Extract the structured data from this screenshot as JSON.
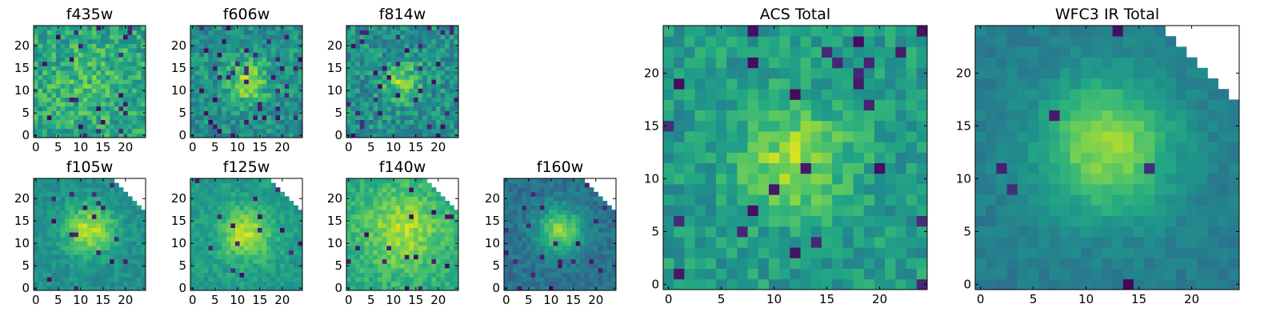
{
  "figure": {
    "background": "#ffffff",
    "colormap": "viridis"
  },
  "chart_data": [
    {
      "type": "heatmap",
      "title": "f435w",
      "grid": [
        25,
        25
      ],
      "xlim": [
        -0.5,
        24.5
      ],
      "ylim": [
        -0.5,
        24.5
      ],
      "xticks": [
        0,
        5,
        10,
        15,
        20
      ],
      "yticks": [
        0,
        5,
        10,
        15,
        20
      ],
      "xtick_labels": [
        "0",
        "5",
        "10",
        "15",
        "20"
      ],
      "ytick_labels": [
        "0",
        "5",
        "10",
        "15",
        "20"
      ],
      "center": [
        12,
        12
      ],
      "sigma": 6,
      "peak": 0.1,
      "base": 0.58,
      "noise": 0.34,
      "dark_frac": 0.04,
      "mask_corner": false,
      "seed": 11
    },
    {
      "type": "heatmap",
      "title": "f606w",
      "grid": [
        25,
        25
      ],
      "xlim": [
        -0.5,
        24.5
      ],
      "ylim": [
        -0.5,
        24.5
      ],
      "xticks": [
        0,
        5,
        10,
        15,
        20
      ],
      "yticks": [
        0,
        5,
        10,
        15,
        20
      ],
      "xtick_labels": [
        "0",
        "5",
        "10",
        "15",
        "20"
      ],
      "ytick_labels": [
        "0",
        "5",
        "10",
        "15",
        "20"
      ],
      "center": [
        12,
        12
      ],
      "sigma": 3.5,
      "peak": 0.32,
      "base": 0.5,
      "noise": 0.3,
      "dark_frac": 0.05,
      "mask_corner": false,
      "seed": 23
    },
    {
      "type": "heatmap",
      "title": "f814w",
      "grid": [
        25,
        25
      ],
      "xlim": [
        -0.5,
        24.5
      ],
      "ylim": [
        -0.5,
        24.5
      ],
      "xticks": [
        0,
        5,
        10,
        15,
        20
      ],
      "yticks": [
        0,
        5,
        10,
        15,
        20
      ],
      "xtick_labels": [
        "0",
        "5",
        "10",
        "15",
        "20"
      ],
      "ytick_labels": [
        "0",
        "5",
        "10",
        "15",
        "20"
      ],
      "center": [
        12,
        12
      ],
      "sigma": 3,
      "peak": 0.3,
      "base": 0.5,
      "noise": 0.32,
      "dark_frac": 0.05,
      "mask_corner": false,
      "seed": 37
    },
    {
      "type": "heatmap",
      "title": "f105w",
      "grid": [
        25,
        25
      ],
      "xlim": [
        -0.5,
        24.5
      ],
      "ylim": [
        -0.5,
        24.5
      ],
      "xticks": [
        0,
        5,
        10,
        15,
        20
      ],
      "yticks": [
        0,
        5,
        10,
        15,
        20
      ],
      "xtick_labels": [
        "0",
        "5",
        "10",
        "15",
        "20"
      ],
      "ytick_labels": [
        "0",
        "5",
        "10",
        "15",
        "20"
      ],
      "center": [
        12,
        13
      ],
      "sigma": 4,
      "peak": 0.38,
      "base": 0.5,
      "noise": 0.16,
      "dark_frac": 0.03,
      "mask_corner": true,
      "seed": 41
    },
    {
      "type": "heatmap",
      "title": "f125w",
      "grid": [
        25,
        25
      ],
      "xlim": [
        -0.5,
        24.5
      ],
      "ylim": [
        -0.5,
        24.5
      ],
      "xticks": [
        0,
        5,
        10,
        15,
        20
      ],
      "yticks": [
        0,
        5,
        10,
        15,
        20
      ],
      "xtick_labels": [
        "0",
        "5",
        "10",
        "15",
        "20"
      ],
      "ytick_labels": [
        "0",
        "5",
        "10",
        "15",
        "20"
      ],
      "center": [
        12,
        12
      ],
      "sigma": 4,
      "peak": 0.35,
      "base": 0.55,
      "noise": 0.16,
      "dark_frac": 0.03,
      "mask_corner": true,
      "seed": 53
    },
    {
      "type": "heatmap",
      "title": "f140w",
      "grid": [
        25,
        25
      ],
      "xlim": [
        -0.5,
        24.5
      ],
      "ylim": [
        -0.5,
        24.5
      ],
      "xticks": [
        0,
        5,
        10,
        15,
        20
      ],
      "yticks": [
        0,
        5,
        10,
        15,
        20
      ],
      "xtick_labels": [
        "0",
        "5",
        "10",
        "15",
        "20"
      ],
      "ytick_labels": [
        "0",
        "5",
        "10",
        "15",
        "20"
      ],
      "center": [
        12,
        13
      ],
      "sigma": 6,
      "peak": 0.25,
      "base": 0.62,
      "noise": 0.18,
      "dark_frac": 0.02,
      "mask_corner": true,
      "seed": 67
    },
    {
      "type": "heatmap",
      "title": "f160w",
      "grid": [
        25,
        25
      ],
      "xlim": [
        -0.5,
        24.5
      ],
      "ylim": [
        -0.5,
        24.5
      ],
      "xticks": [
        0,
        5,
        10,
        15,
        20
      ],
      "yticks": [
        0,
        5,
        10,
        15,
        20
      ],
      "xtick_labels": [
        "0",
        "5",
        "10",
        "15",
        "20"
      ],
      "ytick_labels": [
        "0",
        "5",
        "10",
        "15",
        "20"
      ],
      "center": [
        12,
        13
      ],
      "sigma": 3.5,
      "peak": 0.45,
      "base": 0.38,
      "noise": 0.16,
      "dark_frac": 0.04,
      "mask_corner": true,
      "seed": 79
    },
    {
      "type": "heatmap",
      "title": "ACS Total",
      "grid": [
        25,
        25
      ],
      "xlim": [
        -0.5,
        24.5
      ],
      "ylim": [
        -0.5,
        24.5
      ],
      "xticks": [
        0,
        5,
        10,
        15,
        20
      ],
      "yticks": [
        0,
        5,
        10,
        15,
        20
      ],
      "xtick_labels": [
        "0",
        "5",
        "10",
        "15",
        "20"
      ],
      "ytick_labels": [
        "0",
        "5",
        "10",
        "15",
        "20"
      ],
      "center": [
        12,
        12
      ],
      "sigma": 3.5,
      "peak": 0.3,
      "base": 0.55,
      "noise": 0.24,
      "dark_frac": 0.04,
      "mask_corner": false,
      "seed": 89
    },
    {
      "type": "heatmap",
      "title": "WFC3 IR Total",
      "grid": [
        25,
        25
      ],
      "xlim": [
        -0.5,
        24.5
      ],
      "ylim": [
        -0.5,
        24.5
      ],
      "xticks": [
        0,
        5,
        10,
        15,
        20
      ],
      "yticks": [
        0,
        5,
        10,
        15,
        20
      ],
      "xtick_labels": [
        "0",
        "5",
        "10",
        "15",
        "20"
      ],
      "ytick_labels": [
        "0",
        "5",
        "10",
        "15",
        "20"
      ],
      "center": [
        12,
        13
      ],
      "sigma": 4.5,
      "peak": 0.42,
      "base": 0.42,
      "noise": 0.1,
      "dark_frac": 0.015,
      "mask_corner": true,
      "seed": 97
    }
  ]
}
